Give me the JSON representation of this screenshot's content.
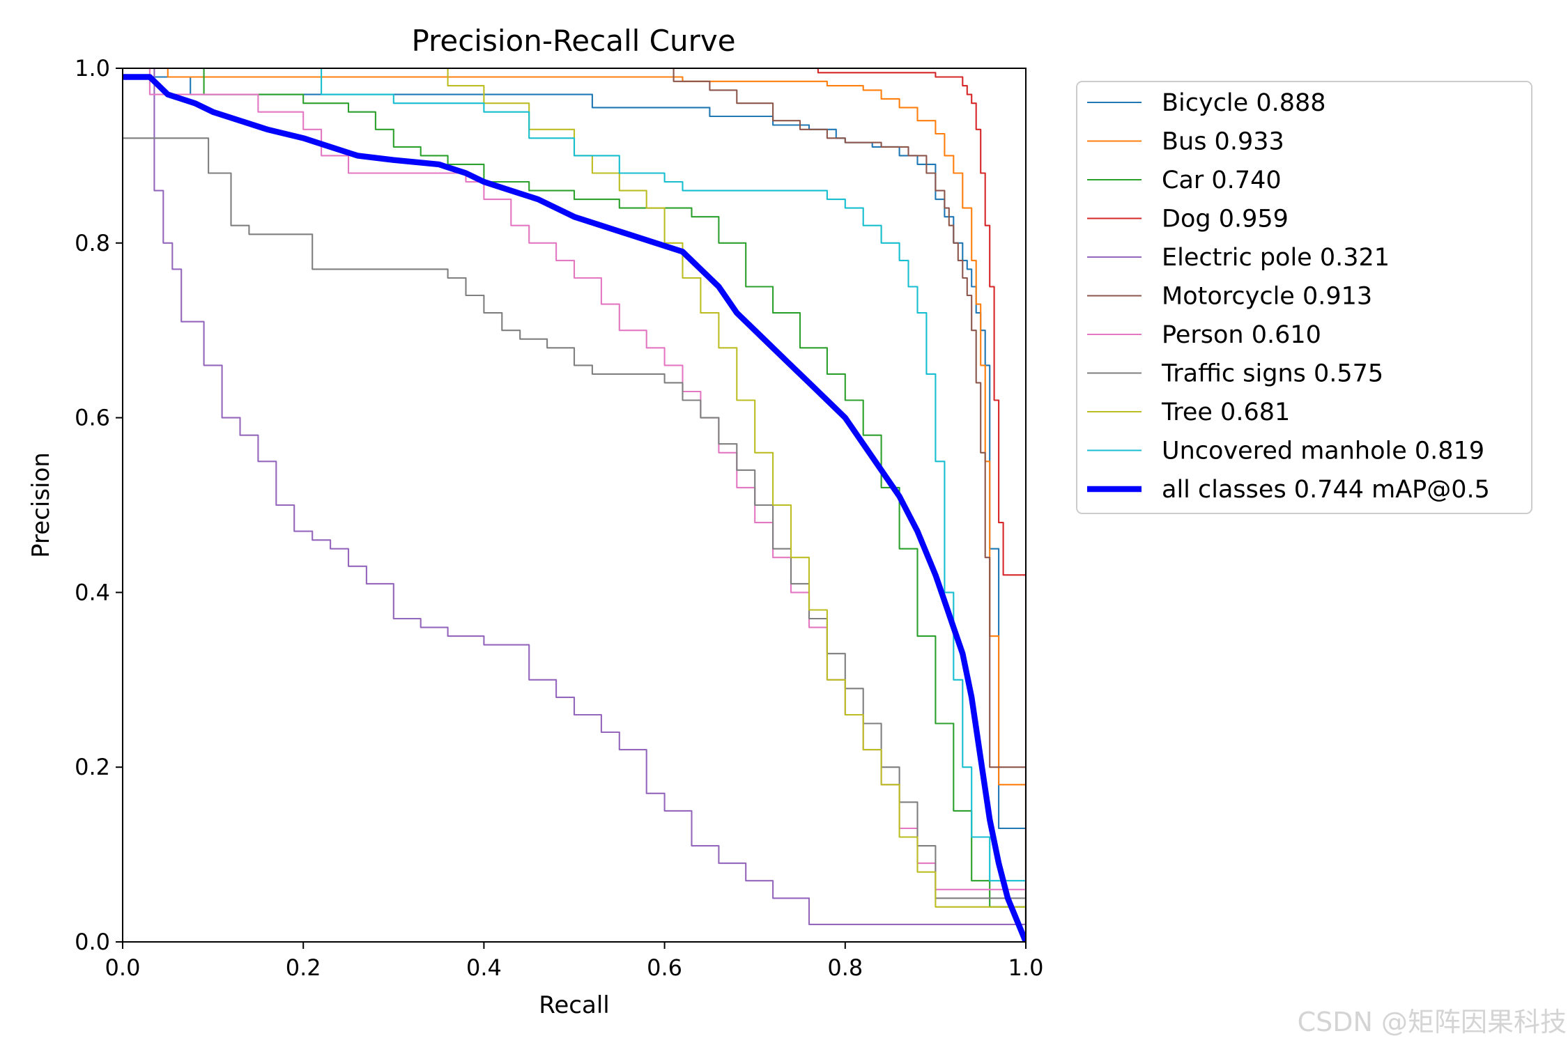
{
  "watermark": "CSDN @矩阵因果科技",
  "chart_data": {
    "type": "line",
    "title": "Precision-Recall Curve",
    "xlabel": "Recall",
    "ylabel": "Precision",
    "xlim": [
      0,
      1
    ],
    "ylim": [
      0,
      1
    ],
    "xticks": [
      "0.0",
      "0.2",
      "0.4",
      "0.6",
      "0.8",
      "1.0"
    ],
    "yticks": [
      "0.0",
      "0.2",
      "0.4",
      "0.6",
      "0.8",
      "1.0"
    ],
    "grid": false,
    "legend_position": "outside-right-top",
    "series": [
      {
        "name": "Bicycle 0.888",
        "color": "#1f77b4",
        "line_width": 1.5,
        "step": true,
        "x": [
          0,
          0.07,
          0.075,
          0.5,
          0.52,
          0.65,
          0.72,
          0.76,
          0.79,
          0.8,
          0.83,
          0.86,
          0.88,
          0.9,
          0.91,
          0.92,
          0.93,
          0.935,
          0.94,
          0.945,
          0.95,
          0.955,
          0.96,
          0.97,
          1.0
        ],
        "y": [
          0.99,
          0.99,
          0.97,
          0.97,
          0.955,
          0.945,
          0.935,
          0.93,
          0.92,
          0.915,
          0.91,
          0.9,
          0.89,
          0.85,
          0.83,
          0.8,
          0.78,
          0.77,
          0.75,
          0.72,
          0.7,
          0.66,
          0.45,
          0.13,
          0.0
        ]
      },
      {
        "name": "Bus 0.933",
        "color": "#ff7f0e",
        "line_width": 1.5,
        "step": true,
        "x": [
          0,
          0.04,
          0.05,
          0.6,
          0.62,
          0.75,
          0.78,
          0.8,
          0.82,
          0.84,
          0.86,
          0.88,
          0.9,
          0.91,
          0.92,
          0.93,
          0.94,
          0.945,
          0.95,
          0.955,
          0.96,
          0.97,
          1.0
        ],
        "y": [
          1.0,
          1.0,
          0.99,
          0.99,
          0.985,
          0.985,
          0.98,
          0.98,
          0.975,
          0.965,
          0.955,
          0.94,
          0.925,
          0.9,
          0.88,
          0.84,
          0.78,
          0.73,
          0.66,
          0.55,
          0.35,
          0.18,
          0.0
        ]
      },
      {
        "name": "Car 0.740",
        "color": "#2ca02c",
        "line_width": 1.5,
        "step": true,
        "x": [
          0,
          0.08,
          0.09,
          0.15,
          0.2,
          0.25,
          0.28,
          0.3,
          0.33,
          0.36,
          0.4,
          0.45,
          0.5,
          0.55,
          0.6,
          0.63,
          0.66,
          0.69,
          0.72,
          0.75,
          0.78,
          0.8,
          0.82,
          0.84,
          0.86,
          0.88,
          0.9,
          0.92,
          0.94,
          0.96,
          1.0
        ],
        "y": [
          1.0,
          1.0,
          0.97,
          0.97,
          0.96,
          0.95,
          0.93,
          0.91,
          0.9,
          0.89,
          0.87,
          0.86,
          0.85,
          0.84,
          0.84,
          0.83,
          0.8,
          0.75,
          0.72,
          0.68,
          0.65,
          0.62,
          0.58,
          0.52,
          0.45,
          0.35,
          0.25,
          0.15,
          0.07,
          0.04,
          0.0
        ]
      },
      {
        "name": "Dog 0.959",
        "color": "#d62728",
        "line_width": 1.5,
        "step": true,
        "x": [
          0,
          0.76,
          0.77,
          0.84,
          0.9,
          0.93,
          0.935,
          0.94,
          0.945,
          0.95,
          0.955,
          0.96,
          0.965,
          0.97,
          0.975,
          1.0
        ],
        "y": [
          1.0,
          1.0,
          0.995,
          0.995,
          0.99,
          0.98,
          0.97,
          0.96,
          0.93,
          0.88,
          0.82,
          0.75,
          0.62,
          0.48,
          0.42,
          0.0
        ]
      },
      {
        "name": "Electric pole 0.321",
        "color": "#9467bd",
        "line_width": 1.5,
        "step": true,
        "x": [
          0,
          0.03,
          0.035,
          0.045,
          0.055,
          0.065,
          0.075,
          0.09,
          0.11,
          0.13,
          0.15,
          0.17,
          0.19,
          0.21,
          0.23,
          0.25,
          0.27,
          0.3,
          0.33,
          0.36,
          0.4,
          0.45,
          0.48,
          0.5,
          0.53,
          0.55,
          0.58,
          0.6,
          0.63,
          0.66,
          0.69,
          0.72,
          0.76,
          1.0
        ],
        "y": [
          1.0,
          1.0,
          0.86,
          0.8,
          0.77,
          0.71,
          0.71,
          0.66,
          0.6,
          0.58,
          0.55,
          0.5,
          0.47,
          0.46,
          0.45,
          0.43,
          0.41,
          0.37,
          0.36,
          0.35,
          0.34,
          0.3,
          0.28,
          0.26,
          0.24,
          0.22,
          0.17,
          0.15,
          0.11,
          0.09,
          0.07,
          0.05,
          0.02,
          0.0
        ]
      },
      {
        "name": "Motorcycle 0.913",
        "color": "#8c564b",
        "line_width": 1.5,
        "step": true,
        "x": [
          0,
          0.6,
          0.61,
          0.65,
          0.68,
          0.72,
          0.75,
          0.78,
          0.8,
          0.84,
          0.87,
          0.89,
          0.9,
          0.91,
          0.915,
          0.92,
          0.925,
          0.93,
          0.935,
          0.94,
          0.945,
          0.95,
          0.955,
          0.96,
          1.0
        ],
        "y": [
          1.0,
          1.0,
          0.985,
          0.975,
          0.96,
          0.94,
          0.93,
          0.92,
          0.915,
          0.91,
          0.9,
          0.88,
          0.86,
          0.84,
          0.82,
          0.8,
          0.78,
          0.76,
          0.74,
          0.7,
          0.64,
          0.56,
          0.44,
          0.2,
          0.0
        ]
      },
      {
        "name": "Person 0.610",
        "color": "#e377c2",
        "line_width": 1.5,
        "step": true,
        "x": [
          0,
          0.03,
          0.1,
          0.15,
          0.2,
          0.22,
          0.25,
          0.3,
          0.35,
          0.38,
          0.4,
          0.43,
          0.45,
          0.48,
          0.5,
          0.53,
          0.55,
          0.58,
          0.6,
          0.62,
          0.64,
          0.66,
          0.68,
          0.7,
          0.72,
          0.74,
          0.76,
          0.78,
          0.8,
          0.82,
          0.84,
          0.86,
          0.88,
          0.9,
          1.0
        ],
        "y": [
          1.0,
          0.97,
          0.97,
          0.95,
          0.93,
          0.9,
          0.88,
          0.88,
          0.88,
          0.87,
          0.85,
          0.82,
          0.8,
          0.78,
          0.76,
          0.73,
          0.7,
          0.68,
          0.66,
          0.63,
          0.6,
          0.56,
          0.52,
          0.48,
          0.44,
          0.4,
          0.36,
          0.3,
          0.26,
          0.22,
          0.18,
          0.13,
          0.09,
          0.06,
          0.0
        ]
      },
      {
        "name": "Traffic signs 0.575",
        "color": "#7f7f7f",
        "line_width": 1.5,
        "step": true,
        "x": [
          0,
          0.09,
          0.095,
          0.12,
          0.14,
          0.2,
          0.21,
          0.3,
          0.35,
          0.36,
          0.38,
          0.4,
          0.42,
          0.44,
          0.47,
          0.5,
          0.52,
          0.55,
          0.58,
          0.6,
          0.62,
          0.64,
          0.66,
          0.68,
          0.7,
          0.72,
          0.74,
          0.76,
          0.78,
          0.8,
          0.82,
          0.84,
          0.86,
          0.88,
          0.9,
          1.0
        ],
        "y": [
          0.92,
          0.92,
          0.88,
          0.82,
          0.81,
          0.81,
          0.77,
          0.77,
          0.77,
          0.76,
          0.74,
          0.72,
          0.7,
          0.69,
          0.68,
          0.66,
          0.65,
          0.65,
          0.65,
          0.64,
          0.62,
          0.6,
          0.57,
          0.54,
          0.5,
          0.45,
          0.41,
          0.37,
          0.33,
          0.29,
          0.25,
          0.2,
          0.16,
          0.11,
          0.05,
          0.0
        ]
      },
      {
        "name": "Tree 0.681",
        "color": "#bcbd22",
        "line_width": 1.5,
        "step": true,
        "x": [
          0,
          0.35,
          0.36,
          0.4,
          0.45,
          0.5,
          0.52,
          0.55,
          0.58,
          0.6,
          0.62,
          0.64,
          0.66,
          0.68,
          0.7,
          0.72,
          0.74,
          0.76,
          0.78,
          0.8,
          0.82,
          0.84,
          0.86,
          0.88,
          0.9,
          1.0
        ],
        "y": [
          1.0,
          1.0,
          0.98,
          0.96,
          0.93,
          0.9,
          0.88,
          0.86,
          0.84,
          0.8,
          0.76,
          0.72,
          0.68,
          0.62,
          0.56,
          0.5,
          0.44,
          0.38,
          0.3,
          0.26,
          0.22,
          0.18,
          0.12,
          0.08,
          0.04,
          0.0
        ]
      },
      {
        "name": "Uncovered manhole 0.819",
        "color": "#17becf",
        "line_width": 1.5,
        "step": true,
        "x": [
          0,
          0.21,
          0.22,
          0.3,
          0.4,
          0.45,
          0.5,
          0.55,
          0.6,
          0.62,
          0.7,
          0.75,
          0.78,
          0.8,
          0.82,
          0.84,
          0.86,
          0.87,
          0.88,
          0.89,
          0.9,
          0.91,
          0.92,
          0.93,
          0.94,
          0.96,
          1.0
        ],
        "y": [
          1.0,
          1.0,
          0.97,
          0.96,
          0.95,
          0.92,
          0.9,
          0.88,
          0.87,
          0.86,
          0.86,
          0.86,
          0.85,
          0.84,
          0.82,
          0.8,
          0.78,
          0.75,
          0.72,
          0.65,
          0.55,
          0.4,
          0.3,
          0.2,
          0.12,
          0.07,
          0.0
        ]
      },
      {
        "name": "all classes 0.744 mAP@0.5",
        "color": "#0000ff",
        "line_width": 6,
        "step": false,
        "x": [
          0,
          0.03,
          0.05,
          0.08,
          0.1,
          0.13,
          0.16,
          0.2,
          0.23,
          0.26,
          0.3,
          0.35,
          0.38,
          0.4,
          0.43,
          0.46,
          0.5,
          0.53,
          0.56,
          0.59,
          0.62,
          0.64,
          0.66,
          0.68,
          0.7,
          0.72,
          0.74,
          0.76,
          0.78,
          0.8,
          0.82,
          0.84,
          0.86,
          0.88,
          0.9,
          0.91,
          0.92,
          0.93,
          0.94,
          0.95,
          0.96,
          0.97,
          0.98,
          1.0
        ],
        "y": [
          0.99,
          0.99,
          0.97,
          0.96,
          0.95,
          0.94,
          0.93,
          0.92,
          0.91,
          0.9,
          0.895,
          0.89,
          0.88,
          0.87,
          0.86,
          0.85,
          0.83,
          0.82,
          0.81,
          0.8,
          0.79,
          0.77,
          0.75,
          0.72,
          0.7,
          0.68,
          0.66,
          0.64,
          0.62,
          0.6,
          0.57,
          0.54,
          0.51,
          0.47,
          0.42,
          0.39,
          0.36,
          0.33,
          0.28,
          0.21,
          0.14,
          0.09,
          0.05,
          0.0
        ]
      }
    ]
  }
}
